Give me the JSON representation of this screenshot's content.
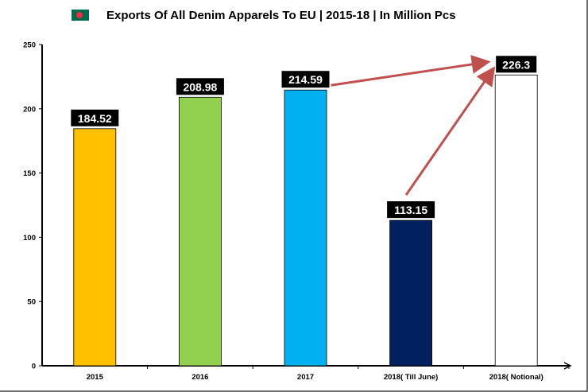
{
  "title": "Exports Of All Denim Apparels To EU | 2015-18 | In Million Pcs",
  "flag_icon": "bangladesh-flag-icon",
  "chart_data": {
    "type": "bar",
    "title": "Exports Of All Denim Apparels To EU | 2015-18 | In Million Pcs",
    "categories": [
      "2015",
      "2016",
      "2017",
      "2018( Till June)",
      "2018( Notional)"
    ],
    "values": [
      184.52,
      208.98,
      214.59,
      113.15,
      226.3
    ],
    "data_labels": [
      "184.52",
      "208.98",
      "214.59",
      "113.15",
      "226.3"
    ],
    "colors": [
      "#ffc000",
      "#92d050",
      "#00b0f0",
      "#002060",
      "#ffffff"
    ],
    "ylim": [
      0,
      250
    ],
    "yticks": [
      0,
      50,
      100,
      150,
      200,
      250
    ],
    "xlabel": "",
    "ylabel": "",
    "grid": false,
    "legend": "none",
    "annotation_arrows": [
      {
        "from": "2017",
        "to": "2018( Notional)",
        "color": "#c0504d"
      },
      {
        "from": "2018( Till June)",
        "to": "2018( Notional)",
        "color": "#c0504d"
      }
    ]
  }
}
